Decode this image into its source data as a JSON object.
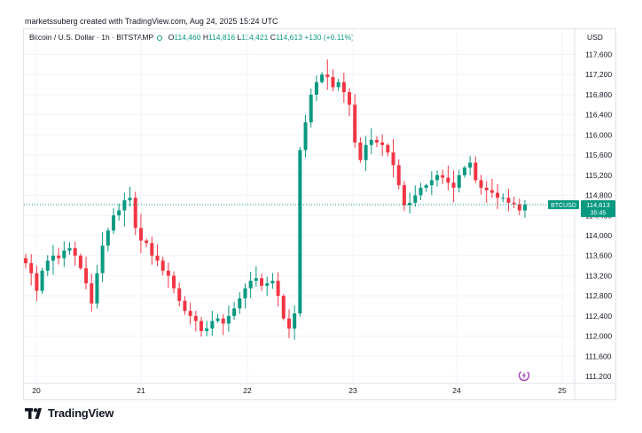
{
  "credit": "marketssuberg created with TradingView.com, Aug 24, 2025 15:24 UTC",
  "legend": {
    "symbol": "Bitcoin / U.S. Dollar · 1h · BITSTAMP",
    "o_label": "O",
    "o": "114,460",
    "h_label": "H",
    "h": "114,816",
    "l_label": "L",
    "l": "114,421",
    "c_label": "C",
    "c": "114,613",
    "change": "+130 (+0.11%)"
  },
  "currency": "USD",
  "price_tag": {
    "symbol": "BTCUSD",
    "price": "114,613",
    "countdown": "35:45"
  },
  "brand": "TradingView",
  "colors": {
    "up": "#089981",
    "down": "#f23645",
    "grid": "#f0f3fa",
    "text": "#131722",
    "accent": "#9c27b0"
  },
  "icons": {
    "lightning": "lightning-icon",
    "logo": "tradingview-logo-icon"
  },
  "chart_data": {
    "type": "candlestick",
    "title": "Bitcoin / U.S. Dollar · 1h · BITSTAMP",
    "currency": "USD",
    "ylim": [
      111000,
      117800
    ],
    "y_ticks": [
      117600,
      117200,
      116800,
      116400,
      116000,
      115600,
      115200,
      114800,
      114400,
      114000,
      113600,
      113200,
      112800,
      112400,
      112000,
      111600,
      111200
    ],
    "x_ticks": [
      "20",
      "21",
      "22",
      "23",
      "24",
      "25"
    ],
    "grid": true,
    "last_price": 114613,
    "close_path": [
      113450,
      113250,
      112900,
      113300,
      113500,
      113600,
      113550,
      113700,
      113750,
      113600,
      113350,
      113050,
      112650,
      113250,
      113800,
      114100,
      114400,
      114500,
      114700,
      114750,
      114150,
      113900,
      113850,
      113600,
      113500,
      113300,
      113200,
      112950,
      112700,
      112500,
      112400,
      112300,
      112100,
      112150,
      112300,
      112350,
      112250,
      112400,
      112550,
      112750,
      112950,
      113100,
      113150,
      113000,
      113050,
      113100,
      112800,
      112350,
      112150,
      112450,
      115700,
      116250,
      116800,
      117050,
      117200,
      117150,
      116950,
      117050,
      116850,
      116600,
      115850,
      115500,
      115800,
      115900,
      115850,
      115800,
      115650,
      115400,
      115000,
      114600,
      114650,
      114800,
      114950,
      115000,
      115100,
      115200,
      115150,
      115050,
      114950,
      115200,
      115350,
      115450,
      115100,
      114950,
      114900,
      114850,
      114750,
      114750,
      114650,
      114620,
      114500,
      114613
    ]
  }
}
